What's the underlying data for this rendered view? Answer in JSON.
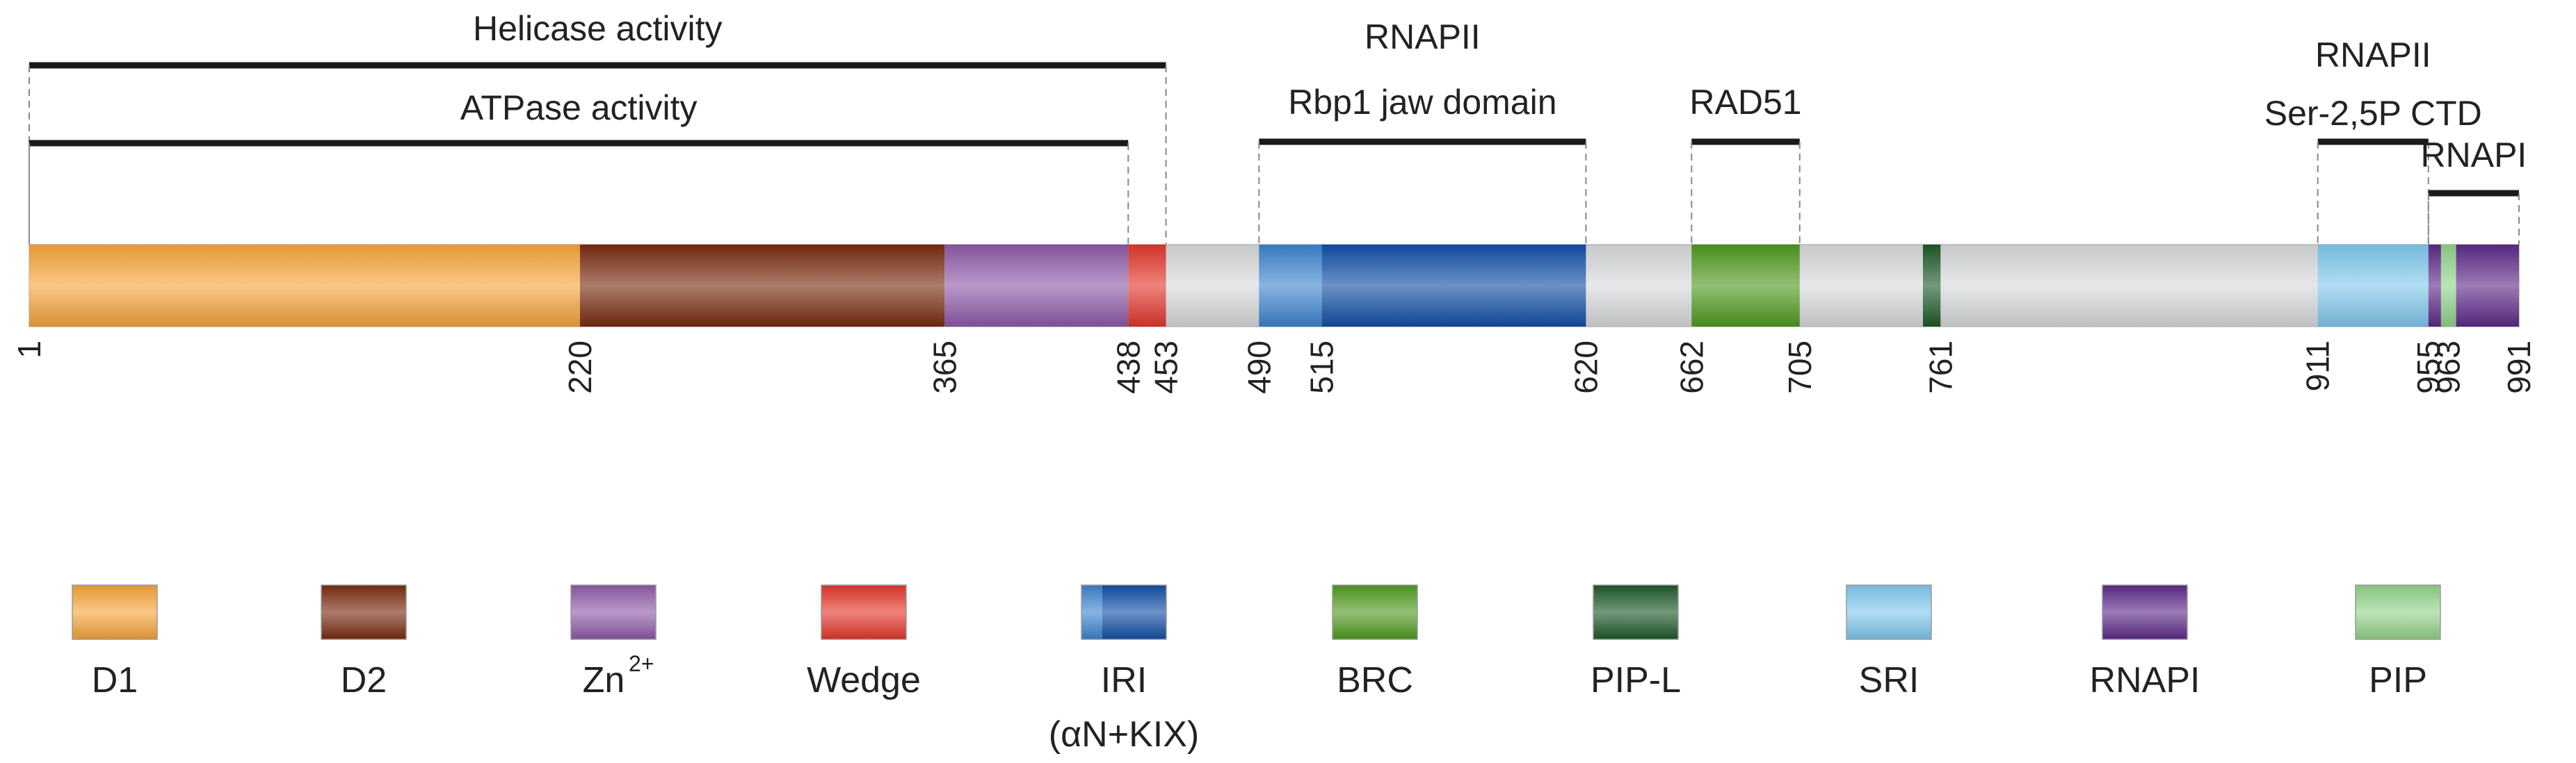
{
  "protein": {
    "length": 991,
    "bar_color": "#d7d9db",
    "domains": [
      {
        "key": "D1",
        "start": 1,
        "end": 220,
        "color": "#f7a43a"
      },
      {
        "key": "D2",
        "start": 220,
        "end": 365,
        "color": "#7a2c10"
      },
      {
        "key": "Zn",
        "start": 365,
        "end": 438,
        "color": "#8e5aa8"
      },
      {
        "key": "Wedge",
        "start": 438,
        "end": 453,
        "color": "#e3372c"
      },
      {
        "key": "IRI_light",
        "start": 490,
        "end": 515,
        "color": "#3d84cf"
      },
      {
        "key": "IRI_dark",
        "start": 515,
        "end": 620,
        "color": "#114fa6"
      },
      {
        "key": "BRC",
        "start": 662,
        "end": 705,
        "color": "#4f9a1f"
      },
      {
        "key": "PIP-L",
        "start": 754,
        "end": 761,
        "color": "#1d5a2a"
      },
      {
        "key": "SRI",
        "start": 911,
        "end": 955,
        "color": "#7fc8ee"
      },
      {
        "key": "RNAPI_a",
        "start": 955,
        "end": 960,
        "color": "#5d2a8a"
      },
      {
        "key": "PIP",
        "start": 960,
        "end": 966,
        "color": "#93d38a"
      },
      {
        "key": "RNAPI_b",
        "start": 966,
        "end": 991,
        "color": "#5d2a8a"
      }
    ],
    "positions": [
      "1",
      "220",
      "365",
      "438",
      "453",
      "490",
      "515",
      "620",
      "662",
      "705",
      "761",
      "911",
      "955",
      "963",
      "991"
    ]
  },
  "annotations": [
    {
      "id": "helicase",
      "lines": [
        "Helicase activity"
      ],
      "start": 1,
      "end": 453
    },
    {
      "id": "atpase",
      "lines": [
        "ATPase activity"
      ],
      "start": 1,
      "end": 438
    },
    {
      "id": "rnapii-jaw",
      "lines": [
        "RNAPII",
        "Rbp1 jaw domain"
      ],
      "start": 490,
      "end": 620
    },
    {
      "id": "rad51",
      "lines": [
        "RAD51"
      ],
      "start": 662,
      "end": 705
    },
    {
      "id": "rnapii-ctd",
      "lines": [
        "RNAPII",
        "Ser-2,5P CTD"
      ],
      "start": 911,
      "end": 955
    },
    {
      "id": "rnapi",
      "lines": [
        "RNAPI"
      ],
      "start": 955,
      "end": 991
    }
  ],
  "legend": [
    {
      "label": "D1",
      "colors": [
        "#f7a43a"
      ]
    },
    {
      "label": "D2",
      "colors": [
        "#7a2c10"
      ]
    },
    {
      "label": "Zn",
      "sup": "2+",
      "colors": [
        "#8e5aa8"
      ]
    },
    {
      "label": "Wedge",
      "colors": [
        "#e3372c"
      ]
    },
    {
      "label": "IRI",
      "label2": "(αN+KIX)",
      "colors": [
        "#3d84cf",
        "#114fa6"
      ]
    },
    {
      "label": "BRC",
      "colors": [
        "#4f9a1f"
      ]
    },
    {
      "label": "PIP-L",
      "colors": [
        "#1d5a2a"
      ]
    },
    {
      "label": "SRI",
      "colors": [
        "#7fc8ee"
      ]
    },
    {
      "label": "RNAPI",
      "colors": [
        "#5d2a8a"
      ]
    },
    {
      "label": "PIP",
      "colors": [
        "#93d38a"
      ]
    }
  ]
}
